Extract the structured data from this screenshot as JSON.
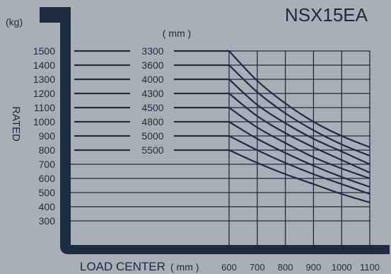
{
  "colors": {
    "background": "#a9afb6",
    "ink": "#1d2c42",
    "grid": "#1d2c42"
  },
  "chart_data": {
    "type": "line",
    "title": "NSX15EA",
    "ylabel": "RATED",
    "yunit": "(kg)",
    "xlabel": "LOAD CENTER",
    "xunit": "( mm )",
    "series_unit": "( mm )",
    "x_ticks": [
      600,
      700,
      800,
      900,
      1000,
      1100
    ],
    "y_ticks": [
      1500,
      1400,
      1300,
      1200,
      1100,
      1000,
      900,
      800,
      700,
      600,
      500,
      400,
      300
    ],
    "xlim": [
      600,
      1100
    ],
    "ylim": [
      300,
      1500
    ],
    "grid": true,
    "series": [
      {
        "name": "3300",
        "rated": 1500,
        "x": [
          600,
          700,
          800,
          900,
          1000,
          1100
        ],
        "y": [
          1500,
          1290,
          1130,
          1000,
          900,
          820
        ]
      },
      {
        "name": "3600",
        "rated": 1400,
        "x": [
          600,
          700,
          800,
          900,
          1000,
          1100
        ],
        "y": [
          1400,
          1210,
          1060,
          940,
          840,
          760
        ]
      },
      {
        "name": "4000",
        "rated": 1300,
        "x": [
          600,
          700,
          800,
          900,
          1000,
          1100
        ],
        "y": [
          1300,
          1120,
          990,
          880,
          790,
          700
        ]
      },
      {
        "name": "4300",
        "rated": 1200,
        "x": [
          600,
          700,
          800,
          900,
          1000,
          1100
        ],
        "y": [
          1200,
          1040,
          920,
          820,
          730,
          640
        ]
      },
      {
        "name": "4500",
        "rated": 1100,
        "x": [
          600,
          700,
          800,
          900,
          1000,
          1100
        ],
        "y": [
          1100,
          960,
          850,
          750,
          670,
          600
        ]
      },
      {
        "name": "4800",
        "rated": 1000,
        "x": [
          600,
          700,
          800,
          900,
          1000,
          1100
        ],
        "y": [
          1000,
          880,
          780,
          690,
          610,
          540
        ]
      },
      {
        "name": "5000",
        "rated": 900,
        "x": [
          600,
          700,
          800,
          900,
          1000,
          1100
        ],
        "y": [
          900,
          800,
          710,
          630,
          560,
          490
        ]
      },
      {
        "name": "5500",
        "rated": 800,
        "x": [
          600,
          700,
          800,
          900,
          1000,
          1100
        ],
        "y": [
          800,
          710,
          630,
          560,
          490,
          430
        ]
      }
    ]
  }
}
